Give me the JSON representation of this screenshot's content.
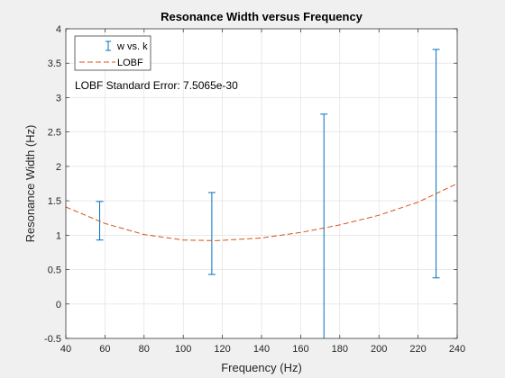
{
  "chart_data": {
    "type": "scatter",
    "title": "Resonance Width versus Frequency",
    "xlabel": "Frequency (Hz)",
    "ylabel": "Resonance Width (Hz)",
    "xlim": [
      40,
      240
    ],
    "ylim": [
      -0.5,
      4
    ],
    "xticks": [
      40,
      60,
      80,
      100,
      120,
      140,
      160,
      180,
      200,
      220,
      240
    ],
    "yticks": [
      -0.5,
      0,
      0.5,
      1,
      1.5,
      2,
      2.5,
      3,
      3.5,
      4
    ],
    "grid": true,
    "legend_position": "top-left",
    "annotation": "LOBF Standard Error: 7.5065e-30",
    "series": [
      {
        "name": "w vs. k",
        "kind": "errorbar",
        "color": "#0072BD",
        "points": [
          {
            "x": 57.3,
            "y": 1.21,
            "low": 0.93,
            "high": 1.49
          },
          {
            "x": 114.6,
            "y": 1.02,
            "low": 0.43,
            "high": 1.62
          },
          {
            "x": 171.9,
            "y": 0.83,
            "low": -0.5,
            "high": 2.76
          },
          {
            "x": 229.2,
            "y": 2.04,
            "low": 0.38,
            "high": 3.7
          }
        ]
      },
      {
        "name": "LOBF",
        "kind": "line",
        "dash": "dashed",
        "color": "#D95319",
        "x": [
          40,
          60,
          80,
          100,
          117,
          140,
          160,
          180,
          200,
          220,
          240
        ],
        "y": [
          1.41,
          1.17,
          1.01,
          0.93,
          0.92,
          0.96,
          1.04,
          1.15,
          1.29,
          1.48,
          1.75
        ]
      }
    ]
  }
}
